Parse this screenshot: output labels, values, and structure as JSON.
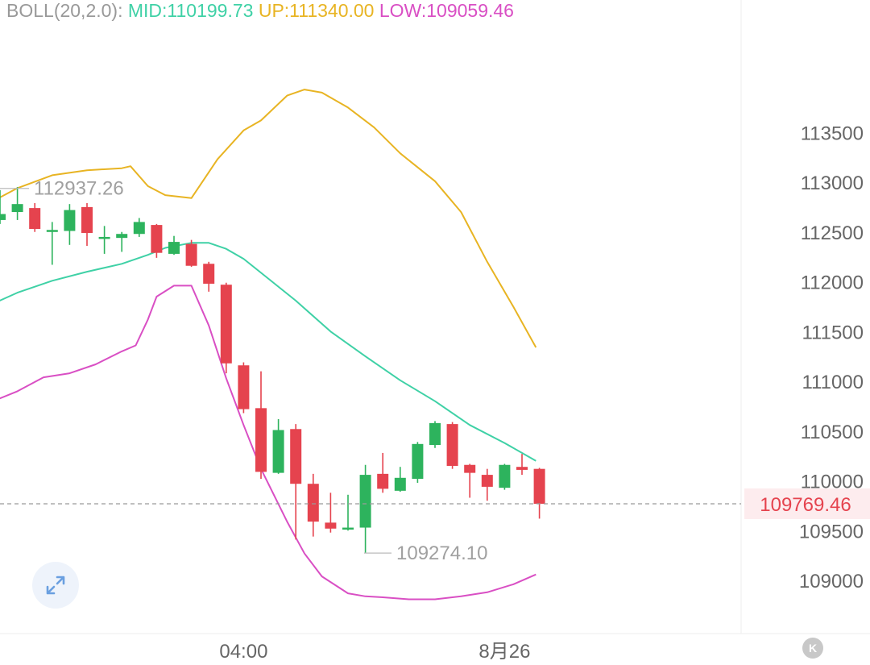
{
  "legend": {
    "name": "BOLL(20,2.0):",
    "mid": "MID:110199.73",
    "up": "UP:111340.00",
    "low": "LOW:109059.46"
  },
  "colors": {
    "up_candle": "#2db35d",
    "down_candle": "#e5434e",
    "mid_line": "#3fd1a6",
    "upper_band": "#e8b423",
    "lower_band": "#d94fc4",
    "axis_text": "#666666",
    "price_tag_bg": "#fdecee",
    "price_tag_text": "#e5434e",
    "legend_name": "#999999"
  },
  "fab_icon": "expand-arrows-icon",
  "logo_icon": "k-logo-icon",
  "logo_text": "K",
  "chart_data": {
    "type": "candlestick",
    "y_ticks": [
      109000,
      109500,
      110000,
      110500,
      111000,
      111500,
      112000,
      112500,
      113000,
      113500
    ],
    "x_ticks": [
      {
        "label": "04:00",
        "index": 14
      },
      {
        "label": "8月26",
        "index": 29
      }
    ],
    "current_price": "109769.46",
    "current_price_value": 109769.46,
    "high_annotation": {
      "label": "112937.26",
      "value": 112937.26,
      "index": 0
    },
    "low_annotation": {
      "label": "109274.10",
      "value": 109274.1,
      "index": 20
    },
    "candles": [
      {
        "o": 112620,
        "c": 112680,
        "h": 112920,
        "l": 112580
      },
      {
        "o": 112700,
        "c": 112780,
        "h": 112950,
        "l": 112620
      },
      {
        "o": 112740,
        "c": 112530,
        "h": 112790,
        "l": 112500
      },
      {
        "o": 112520,
        "c": 112520,
        "h": 112600,
        "l": 112170
      },
      {
        "o": 112510,
        "c": 112720,
        "h": 112780,
        "l": 112370
      },
      {
        "o": 112750,
        "c": 112490,
        "h": 112790,
        "l": 112360
      },
      {
        "o": 112450,
        "c": 112450,
        "h": 112560,
        "l": 112280
      },
      {
        "o": 112440,
        "c": 112480,
        "h": 112500,
        "l": 112300
      },
      {
        "o": 112480,
        "c": 112600,
        "h": 112640,
        "l": 112450
      },
      {
        "o": 112570,
        "c": 112290,
        "h": 112580,
        "l": 112240
      },
      {
        "o": 112280,
        "c": 112400,
        "h": 112460,
        "l": 112270
      },
      {
        "o": 112380,
        "c": 112160,
        "h": 112420,
        "l": 112150
      },
      {
        "o": 112180,
        "c": 111980,
        "h": 112200,
        "l": 111900
      },
      {
        "o": 111970,
        "c": 111180,
        "h": 111990,
        "l": 111080
      },
      {
        "o": 111160,
        "c": 110720,
        "h": 111190,
        "l": 110680
      },
      {
        "o": 110730,
        "c": 110090,
        "h": 111100,
        "l": 110020
      },
      {
        "o": 110080,
        "c": 110510,
        "h": 110620,
        "l": 110070
      },
      {
        "o": 110520,
        "c": 109970,
        "h": 110570,
        "l": 109410
      },
      {
        "o": 109970,
        "c": 109590,
        "h": 110070,
        "l": 109440
      },
      {
        "o": 109580,
        "c": 109520,
        "h": 109880,
        "l": 109480
      },
      {
        "o": 109510,
        "c": 109530,
        "h": 109860,
        "l": 109500
      },
      {
        "o": 109530,
        "c": 110060,
        "h": 110160,
        "l": 109274.1
      },
      {
        "o": 110070,
        "c": 109920,
        "h": 110280,
        "l": 109880
      },
      {
        "o": 109900,
        "c": 110030,
        "h": 110140,
        "l": 109890
      },
      {
        "o": 110020,
        "c": 110370,
        "h": 110390,
        "l": 109980
      },
      {
        "o": 110360,
        "c": 110580,
        "h": 110600,
        "l": 110330
      },
      {
        "o": 110570,
        "c": 110150,
        "h": 110590,
        "l": 110120
      },
      {
        "o": 110160,
        "c": 110080,
        "h": 110170,
        "l": 109830
      },
      {
        "o": 110060,
        "c": 109940,
        "h": 110120,
        "l": 109800
      },
      {
        "o": 109930,
        "c": 110160,
        "h": 110170,
        "l": 109910
      },
      {
        "o": 110140,
        "c": 110110,
        "h": 110270,
        "l": 110060
      },
      {
        "o": 110120,
        "c": 109769.46,
        "h": 110130,
        "l": 109620
      }
    ],
    "boll_mid": [
      {
        "i": -0.4,
        "v": 111780
      },
      {
        "i": 1,
        "v": 111890
      },
      {
        "i": 3,
        "v": 112010
      },
      {
        "i": 5,
        "v": 112100
      },
      {
        "i": 7,
        "v": 112180
      },
      {
        "i": 8.5,
        "v": 112270
      },
      {
        "i": 9.5,
        "v": 112340
      },
      {
        "i": 11,
        "v": 112390
      },
      {
        "i": 12,
        "v": 112390
      },
      {
        "i": 13,
        "v": 112330
      },
      {
        "i": 14,
        "v": 112230
      },
      {
        "i": 15,
        "v": 112090
      },
      {
        "i": 17,
        "v": 111810
      },
      {
        "i": 19,
        "v": 111500
      },
      {
        "i": 21,
        "v": 111250
      },
      {
        "i": 23,
        "v": 111010
      },
      {
        "i": 25,
        "v": 110800
      },
      {
        "i": 27,
        "v": 110560
      },
      {
        "i": 29,
        "v": 110380
      },
      {
        "i": 30.8,
        "v": 110199.73
      }
    ],
    "boll_up": [
      {
        "i": -0.4,
        "v": 112810
      },
      {
        "i": 1,
        "v": 112940
      },
      {
        "i": 3,
        "v": 113070
      },
      {
        "i": 5,
        "v": 113120
      },
      {
        "i": 7,
        "v": 113140
      },
      {
        "i": 7.5,
        "v": 113160
      },
      {
        "i": 8.5,
        "v": 112960
      },
      {
        "i": 9.5,
        "v": 112870
      },
      {
        "i": 11,
        "v": 112840
      },
      {
        "i": 12.5,
        "v": 113230
      },
      {
        "i": 14,
        "v": 113520
      },
      {
        "i": 15,
        "v": 113620
      },
      {
        "i": 16.5,
        "v": 113870
      },
      {
        "i": 17.5,
        "v": 113930
      },
      {
        "i": 18.5,
        "v": 113900
      },
      {
        "i": 20,
        "v": 113750
      },
      {
        "i": 21.5,
        "v": 113550
      },
      {
        "i": 23,
        "v": 113290
      },
      {
        "i": 25,
        "v": 113010
      },
      {
        "i": 26.5,
        "v": 112700
      },
      {
        "i": 28,
        "v": 112200
      },
      {
        "i": 29.5,
        "v": 111750
      },
      {
        "i": 30.8,
        "v": 111340
      }
    ],
    "boll_low": [
      {
        "i": -0.4,
        "v": 110800
      },
      {
        "i": 1,
        "v": 110900
      },
      {
        "i": 2.5,
        "v": 111040
      },
      {
        "i": 4,
        "v": 111080
      },
      {
        "i": 5.5,
        "v": 111170
      },
      {
        "i": 7,
        "v": 111300
      },
      {
        "i": 7.8,
        "v": 111360
      },
      {
        "i": 8.5,
        "v": 111620
      },
      {
        "i": 9,
        "v": 111850
      },
      {
        "i": 10,
        "v": 111960
      },
      {
        "i": 11,
        "v": 111960
      },
      {
        "i": 12,
        "v": 111560
      },
      {
        "i": 13,
        "v": 111030
      },
      {
        "i": 14,
        "v": 110560
      },
      {
        "i": 15,
        "v": 110120
      },
      {
        "i": 16.5,
        "v": 109590
      },
      {
        "i": 17.5,
        "v": 109270
      },
      {
        "i": 18.5,
        "v": 109040
      },
      {
        "i": 20,
        "v": 108870
      },
      {
        "i": 21,
        "v": 108840
      },
      {
        "i": 22,
        "v": 108830
      },
      {
        "i": 23.5,
        "v": 108810
      },
      {
        "i": 25,
        "v": 108810
      },
      {
        "i": 26.5,
        "v": 108840
      },
      {
        "i": 28,
        "v": 108880
      },
      {
        "i": 29.5,
        "v": 108960
      },
      {
        "i": 30.8,
        "v": 109059.46
      }
    ]
  }
}
